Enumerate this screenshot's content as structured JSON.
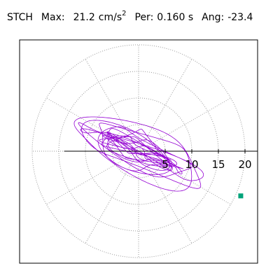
{
  "header": {
    "station": "STCH",
    "max_label": "Max:",
    "max_value": "21.2",
    "max_unit": "cm/s",
    "max_exp": "2",
    "per_label": "Per:",
    "per_value": "0.160 s",
    "ang_label": "Ang:",
    "ang_value": "-23.4"
  },
  "colors": {
    "trace": "#9400d3",
    "marker": "#00a37a",
    "grid": "#999999",
    "frame": "#000000"
  },
  "chart_data": {
    "type": "scatter",
    "subtype": "polar particle-motion plot",
    "radial_ticks": [
      "5",
      "10",
      "15",
      "20"
    ],
    "radial_values": [
      5,
      10,
      15,
      20
    ],
    "rmax": 23,
    "grid": "dotted concentric circles and radial spokes every 30 degrees",
    "max_amplitude": 21.2,
    "angle_deg": -23.4,
    "end_point": {
      "x": 19.2,
      "y": -8.4
    }
  }
}
